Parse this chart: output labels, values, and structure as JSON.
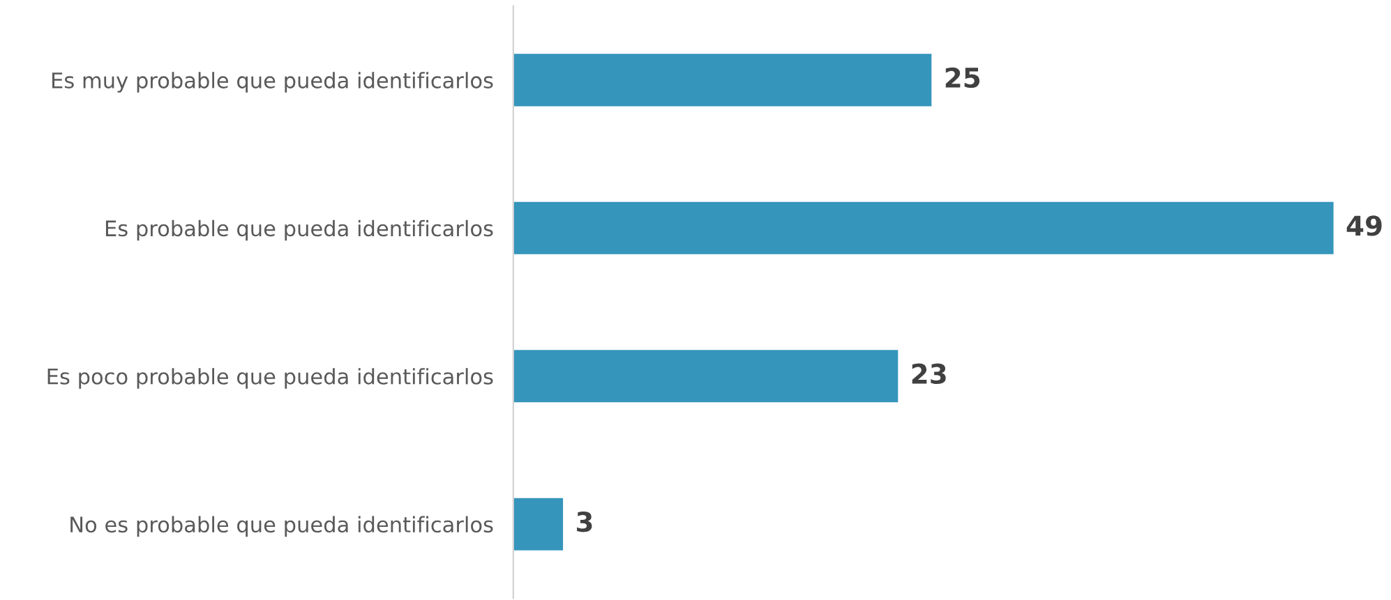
{
  "chart_data": {
    "type": "bar",
    "orientation": "horizontal",
    "categories": [
      "Es muy probable que pueda identificarlos",
      "Es probable que pueda identificarlos",
      "Es poco probable que pueda identificarlos",
      "No es probable que pueda identificarlos"
    ],
    "values": [
      25,
      49,
      23,
      3
    ],
    "color": "#3595bb",
    "data_labels": true,
    "grid": false,
    "legend": false,
    "tick_labels": "y"
  }
}
